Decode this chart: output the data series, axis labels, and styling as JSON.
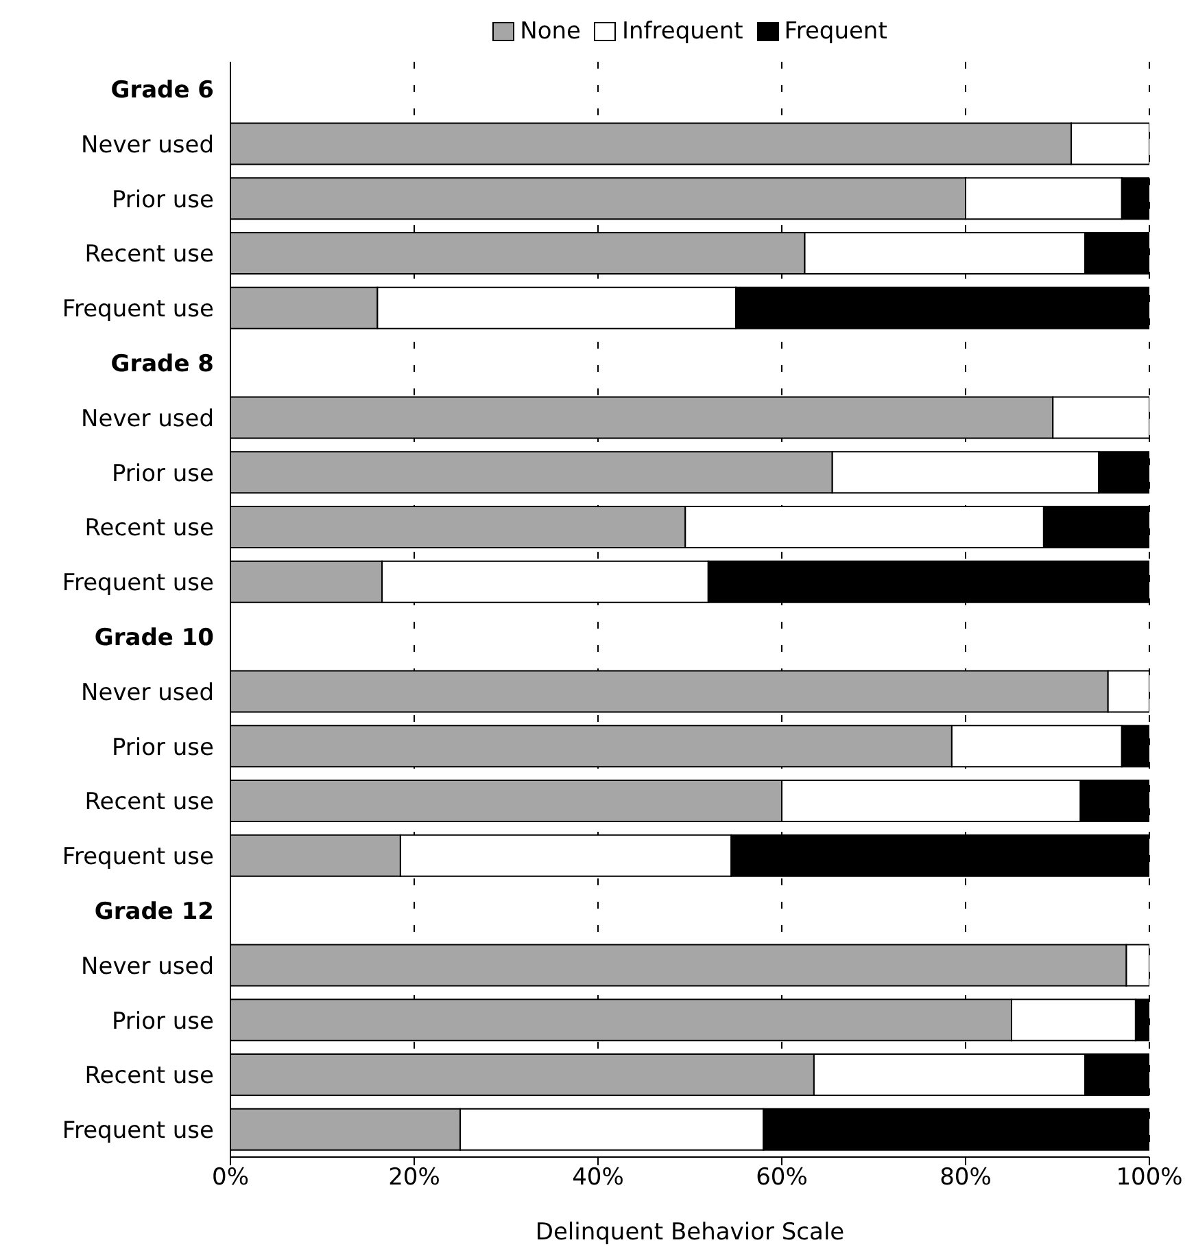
{
  "chart_data": {
    "type": "bar",
    "orientation": "horizontal",
    "stacked": true,
    "xlabel": "Delinquent Behavior Scale",
    "categories": [
      "Grade 6",
      "Never used",
      "Prior use",
      "Recent use",
      "Frequent use",
      "Grade 8",
      "Never used",
      "Prior use",
      "Recent use",
      "Frequent use",
      "Grade 10",
      "Never used",
      "Prior use",
      "Recent use",
      "Frequent use",
      "Grade 12",
      "Never used",
      "Prior use",
      "Recent use",
      "Frequent use"
    ],
    "series": [
      {
        "name": "None",
        "color": "#a6a6a6",
        "values": [
          null,
          91.5,
          80,
          62.5,
          16,
          null,
          89.5,
          65.5,
          49.5,
          16.5,
          null,
          95.5,
          78.5,
          60,
          18.5,
          null,
          97.5,
          85,
          63.5,
          25
        ]
      },
      {
        "name": "Infrequent",
        "color": "#ffffff",
        "values": [
          null,
          8.5,
          17,
          30.5,
          39,
          null,
          10.5,
          29,
          39,
          35.5,
          null,
          4.5,
          18.5,
          32.5,
          36,
          null,
          2.5,
          13.5,
          29.5,
          33
        ]
      },
      {
        "name": "Frequent",
        "color": "#000000",
        "values": [
          null,
          0,
          3,
          7,
          45,
          null,
          0,
          5.5,
          11.5,
          48,
          null,
          0,
          3,
          7.5,
          45.5,
          null,
          0,
          1.5,
          7,
          42
        ]
      }
    ],
    "xlim": [
      0,
      100
    ],
    "xticks": [
      {
        "value": 0,
        "label": "0%"
      },
      {
        "value": 20,
        "label": "20%"
      },
      {
        "value": 40,
        "label": "40%"
      },
      {
        "value": 60,
        "label": "60%"
      },
      {
        "value": 80,
        "label": "80%"
      },
      {
        "value": 100,
        "label": "100%"
      }
    ],
    "grid": "x",
    "legend": "top"
  }
}
